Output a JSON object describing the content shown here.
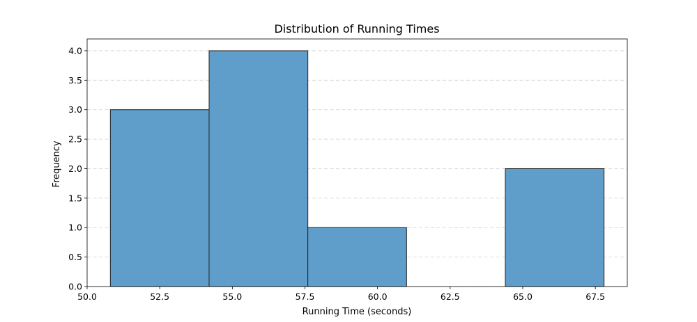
{
  "chart_data": {
    "type": "bar",
    "title": "Distribution of Running Times",
    "xlabel": "Running Time (seconds)",
    "ylabel": "Frequency",
    "bins": [
      {
        "start": 50.8,
        "end": 54.2,
        "count": 3
      },
      {
        "start": 54.2,
        "end": 57.6,
        "count": 4
      },
      {
        "start": 57.6,
        "end": 61.0,
        "count": 1
      },
      {
        "start": 61.0,
        "end": 64.4,
        "count": 0
      },
      {
        "start": 64.4,
        "end": 67.8,
        "count": 2
      }
    ],
    "xlim": [
      50.0,
      68.6
    ],
    "ylim": [
      0,
      4.2
    ],
    "xticks": [
      "50.0",
      "52.5",
      "55.0",
      "57.5",
      "60.0",
      "62.5",
      "65.0",
      "67.5"
    ],
    "yticks": [
      "0.0",
      "0.5",
      "1.0",
      "1.5",
      "2.0",
      "2.5",
      "3.0",
      "3.5",
      "4.0"
    ],
    "grid": "y-dashed",
    "bar_color": "#5f9ecb",
    "bar_edge_color": "#222222",
    "legend": "none"
  }
}
